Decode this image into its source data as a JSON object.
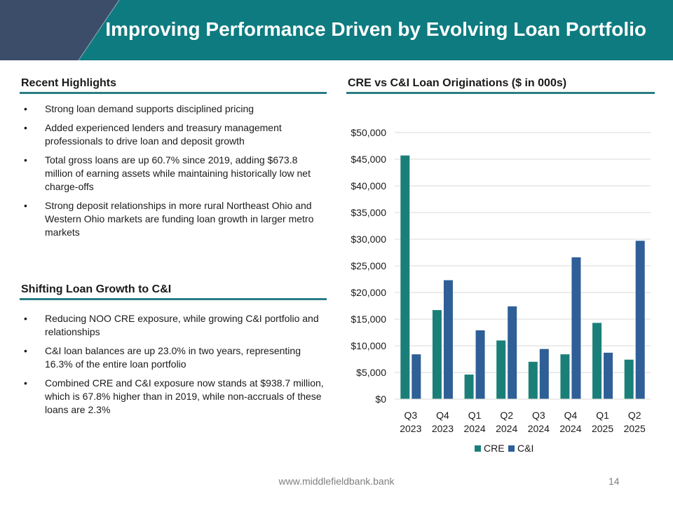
{
  "header": {
    "title": "Improving Performance Driven by Evolving Loan Portfolio",
    "colors": {
      "teal": "#0e7b80",
      "slate": "#3c4d6a"
    }
  },
  "highlights": {
    "title": "Recent Highlights",
    "items": [
      "Strong loan demand supports disciplined pricing",
      "Added experienced lenders and treasury management professionals to drive loan and deposit growth",
      "Total gross loans are up 60.7% since 2019, adding $673.8 million of earning assets while maintaining historically low net charge-offs",
      "Strong deposit relationships in more rural Northeast Ohio and Western Ohio markets are funding loan growth in larger metro markets"
    ]
  },
  "shifting": {
    "title": "Shifting Loan Growth to C&I",
    "items": [
      "Reducing NOO CRE exposure, while growing C&I portfolio and relationships",
      "C&I loan balances are up 23.0% in two years, representing 16.3% of the entire loan portfolio",
      "Combined CRE and C&I exposure now stands at $938.7 million, which is 67.8% higher than in 2019, while non-accruals of these loans are 2.3%"
    ]
  },
  "chart_title": "CRE vs C&I Loan Originations ($ in 000s)",
  "chart_data": {
    "type": "bar",
    "title": "CRE vs C&I Loan Originations ($ in 000s)",
    "categories": [
      [
        "Q3",
        "2023"
      ],
      [
        "Q4",
        "2023"
      ],
      [
        "Q1",
        "2024"
      ],
      [
        "Q2",
        "2024"
      ],
      [
        "Q3",
        "2024"
      ],
      [
        "Q4",
        "2024"
      ],
      [
        "Q1",
        "2025"
      ],
      [
        "Q2",
        "2025"
      ]
    ],
    "series": [
      {
        "name": "CRE",
        "color": "#1b7f79",
        "values": [
          45700,
          16700,
          4600,
          11000,
          7000,
          8400,
          14300,
          7400
        ]
      },
      {
        "name": "C&I",
        "color": "#2e5f96",
        "values": [
          8400,
          22300,
          12900,
          17400,
          9400,
          26600,
          8700,
          29700
        ]
      }
    ],
    "ylim": [
      0,
      50000
    ],
    "yticks": [
      0,
      5000,
      10000,
      15000,
      20000,
      25000,
      30000,
      35000,
      40000,
      45000,
      50000
    ],
    "ytick_labels": [
      "$0",
      "$5,000",
      "$10,000",
      "$15,000",
      "$20,000",
      "$25,000",
      "$30,000",
      "$35,000",
      "$40,000",
      "$45,000",
      "$50,000"
    ],
    "grid": true,
    "legend": "bottom-center",
    "xlabel": "",
    "ylabel": ""
  },
  "footer": {
    "url": "www.middlefieldbank.bank",
    "page": "14"
  }
}
